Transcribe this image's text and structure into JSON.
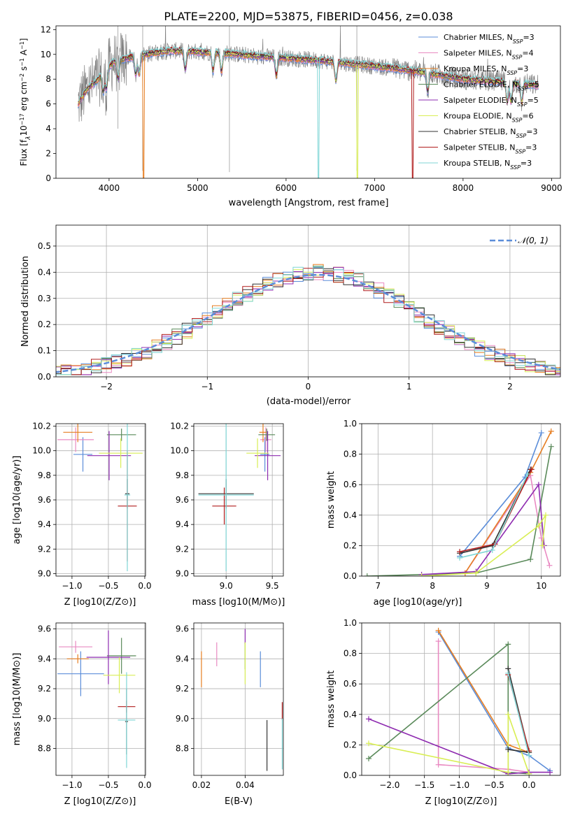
{
  "title": "PLATE=2200, MJD=53875, FIBERID=0456, z=0.038",
  "colors": {
    "Chabrier MILES": "#5b8dd9",
    "Salpeter MILES": "#e98ac2",
    "Kroupa MILES": "#e67e22",
    "Chabrier ELODIE": "#5a8a5a",
    "Salpeter ELODIE": "#8e2bb0",
    "Kroupa ELODIE": "#d9ee55",
    "Chabrier STELIB": "#333333",
    "Salpeter STELIB": "#b01c1c",
    "Kroupa STELIB": "#7fd6d6",
    "data": "#808080",
    "normal": "#5b8dd9"
  },
  "chart_data": [
    {
      "type": "line",
      "id": "spectrum",
      "xlabel": "wavelength [Angstrom, rest frame]",
      "ylabel": "Flux [f_λ 10^-17 erg cm^-2 s^-1 A^-1]",
      "xlim": [
        3400,
        9100
      ],
      "ylim": [
        0,
        12.3
      ],
      "xticks": [
        4000,
        5000,
        6000,
        7000,
        8000,
        9000
      ],
      "yticks": [
        0,
        2,
        4,
        6,
        8,
        10,
        12
      ],
      "legend": "top-right",
      "legend_entries": [
        {
          "label": "Chabrier MILES, N",
          "sub": "SSP",
          "n": "=3"
        },
        {
          "label": "Salpeter MILES, N",
          "sub": "SSP",
          "n": "=4"
        },
        {
          "label": "Kroupa MILES, N",
          "sub": "SSP",
          "n": "=3"
        },
        {
          "label": "Chabrier ELODIE, N",
          "sub": "SSP",
          "n": "=5"
        },
        {
          "label": "Salpeter ELODIE, N",
          "sub": "SSP",
          "n": "=5"
        },
        {
          "label": "Kroupa ELODIE, N",
          "sub": "SSP",
          "n": "=6"
        },
        {
          "label": "Chabrier STELIB, N",
          "sub": "SSP",
          "n": "=3"
        },
        {
          "label": "Salpeter STELIB, N",
          "sub": "SSP",
          "n": "=3"
        },
        {
          "label": "Kroupa STELIB, N",
          "sub": "SSP",
          "n": "=3"
        }
      ],
      "data_series": {
        "x_start": 3650,
        "x_end": 8850,
        "continuum_points": [
          [
            3650,
            6.0
          ],
          [
            3750,
            7.2
          ],
          [
            3850,
            7.8
          ],
          [
            3950,
            8.6
          ],
          [
            4050,
            9.4
          ],
          [
            4200,
            9.7
          ],
          [
            4400,
            10.0
          ],
          [
            4700,
            10.3
          ],
          [
            5000,
            10.2
          ],
          [
            5300,
            10.1
          ],
          [
            5600,
            9.9
          ],
          [
            6000,
            9.7
          ],
          [
            6400,
            9.5
          ],
          [
            6800,
            9.2
          ],
          [
            7200,
            8.9
          ],
          [
            7600,
            8.5
          ],
          [
            8000,
            8.0
          ],
          [
            8400,
            7.8
          ],
          [
            8850,
            7.5
          ]
        ],
        "model_cutoffs": [
          {
            "series": "Kroupa MILES",
            "x": 4380
          },
          {
            "series": "Kroupa STELIB",
            "x": 6360
          },
          {
            "series": "Kroupa ELODIE",
            "x": 6800
          },
          {
            "series": "Salpeter STELIB",
            "x": 7420
          }
        ]
      }
    },
    {
      "type": "histogram",
      "id": "residuals",
      "xlabel": "(data-model)/error",
      "ylabel": "Normed distribution",
      "xlim": [
        -2.5,
        2.5
      ],
      "ylim": [
        0,
        0.58
      ],
      "xticks": [
        -2,
        -1,
        0,
        1,
        2
      ],
      "yticks": [
        0.0,
        0.1,
        0.2,
        0.3,
        0.4,
        0.5
      ],
      "legend": "top-right",
      "legend_label": "𝒩(0, 1)",
      "bin_width": 0.1,
      "sigma": 1.05,
      "mean": 0.1
    },
    {
      "type": "errorbar",
      "id": "age-vs-Z",
      "xlabel": "Z [log10(Z/Z⊙)]",
      "ylabel": "age  [log10(age/yr)]",
      "xlim": [
        -1.22,
        0.01
      ],
      "ylim": [
        8.98,
        10.22
      ],
      "xticks": [
        -1.0,
        -0.5,
        0.0
      ],
      "yticks": [
        9.0,
        9.2,
        9.4,
        9.6,
        9.8,
        10.0,
        10.2
      ],
      "points": [
        {
          "series": "Chabrier MILES",
          "x": -0.85,
          "xerr": 0.13,
          "y": 9.97,
          "yerr": 0.14
        },
        {
          "series": "Salpeter MILES",
          "x": -0.95,
          "xerr": 0.25,
          "y": 10.09,
          "yerr": 0.1
        },
        {
          "series": "Kroupa MILES",
          "x": -0.92,
          "xerr": 0.2,
          "y": 10.15,
          "yerr": 0.08
        },
        {
          "series": "Chabrier ELODIE",
          "x": -0.32,
          "xerr": 0.2,
          "y": 10.13,
          "yerr": 0.05
        },
        {
          "series": "Salpeter ELODIE",
          "x": -0.49,
          "xerr": 0.3,
          "y": 9.96,
          "yerr": 0.2
        },
        {
          "series": "Kroupa ELODIE",
          "x": -0.33,
          "xerr": 0.3,
          "y": 9.98,
          "yerr": 0.12
        },
        {
          "series": "Chabrier STELIB",
          "x": -0.24,
          "xerr": 0.03,
          "y": 9.65,
          "yerr": 0.12
        },
        {
          "series": "Salpeter STELIB",
          "x": -0.24,
          "xerr": 0.13,
          "y": 9.55,
          "yerr": 0.45
        },
        {
          "series": "Kroupa STELIB",
          "x": -0.24,
          "xerr": 0.04,
          "y": 9.64,
          "yerr": 0.62
        }
      ]
    },
    {
      "type": "errorbar",
      "id": "age-vs-mass",
      "xlabel": "mass [log10(M/M⊙)]",
      "ylabel": "",
      "xlim": [
        8.65,
        9.62
      ],
      "ylim": [
        8.98,
        10.22
      ],
      "xticks": [
        9.0,
        9.5
      ],
      "yticks": [
        9.0,
        9.2,
        9.4,
        9.6,
        9.8,
        10.0,
        10.2
      ],
      "points": [
        {
          "series": "Chabrier MILES",
          "x": 9.42,
          "xerr": 0.05,
          "y": 9.97,
          "yerr": 0.14
        },
        {
          "series": "Salpeter MILES",
          "x": 9.43,
          "xerr": 0.06,
          "y": 10.09,
          "yerr": 0.1
        },
        {
          "series": "Kroupa MILES",
          "x": 9.4,
          "xerr": 0.04,
          "y": 10.15,
          "yerr": 0.08
        },
        {
          "series": "Chabrier ELODIE",
          "x": 9.44,
          "xerr": 0.09,
          "y": 10.13,
          "yerr": 0.05
        },
        {
          "series": "Salpeter ELODIE",
          "x": 9.45,
          "xerr": 0.14,
          "y": 9.96,
          "yerr": 0.2
        },
        {
          "series": "Kroupa ELODIE",
          "x": 9.34,
          "xerr": 0.12,
          "y": 9.98,
          "yerr": 0.12
        },
        {
          "series": "Chabrier STELIB",
          "x": 9.0,
          "xerr": 0.3,
          "y": 9.65,
          "yerr": 0.12
        },
        {
          "series": "Salpeter STELIB",
          "x": 8.98,
          "xerr": 0.13,
          "y": 9.55,
          "yerr": 0.15
        },
        {
          "series": "Kroupa STELIB",
          "x": 9.0,
          "xerr": 0.3,
          "y": 9.64,
          "yerr": 0.62
        }
      ]
    },
    {
      "type": "line",
      "id": "massweight-vs-age",
      "xlabel": "age  [log10(age/yr)]",
      "ylabel": "mass weight",
      "xlim": [
        6.7,
        10.35
      ],
      "ylim": [
        0,
        1
      ],
      "xticks": [
        7,
        8,
        9,
        10
      ],
      "yticks": [
        0.0,
        0.2,
        0.4,
        0.6,
        0.8,
        1.0
      ],
      "series": [
        {
          "name": "Chabrier MILES",
          "points": [
            [
              8.5,
              0.13
            ],
            [
              9.7,
              0.65
            ],
            [
              10.0,
              0.94
            ]
          ]
        },
        {
          "name": "Salpeter MILES",
          "points": [
            [
              8.6,
              0.02
            ],
            [
              9.8,
              0.66
            ],
            [
              10.0,
              0.25
            ],
            [
              10.15,
              0.07
            ]
          ]
        },
        {
          "name": "Kroupa MILES",
          "points": [
            [
              8.6,
              0.02
            ],
            [
              9.8,
              0.68
            ],
            [
              10.18,
              0.95
            ]
          ]
        },
        {
          "name": "Chabrier ELODIE",
          "points": [
            [
              6.8,
              0.0
            ],
            [
              8.8,
              0.02
            ],
            [
              9.8,
              0.11
            ],
            [
              10.18,
              0.85
            ]
          ]
        },
        {
          "name": "Salpeter ELODIE",
          "points": [
            [
              7.8,
              0.01
            ],
            [
              8.8,
              0.03
            ],
            [
              9.95,
              0.6
            ],
            [
              10.05,
              0.2
            ]
          ]
        },
        {
          "name": "Kroupa ELODIE",
          "points": [
            [
              7.8,
              0.0
            ],
            [
              8.8,
              0.02
            ],
            [
              9.95,
              0.33
            ],
            [
              10.08,
              0.4
            ],
            [
              10.02,
              0.2
            ]
          ]
        },
        {
          "name": "Chabrier STELIB",
          "points": [
            [
              8.5,
              0.15
            ],
            [
              9.1,
              0.2
            ],
            [
              9.8,
              0.7
            ]
          ]
        },
        {
          "name": "Salpeter STELIB",
          "points": [
            [
              8.5,
              0.16
            ],
            [
              9.15,
              0.21
            ],
            [
              9.82,
              0.7
            ]
          ]
        },
        {
          "name": "Kroupa STELIB",
          "points": [
            [
              8.5,
              0.12
            ],
            [
              9.1,
              0.17
            ],
            [
              9.75,
              0.67
            ]
          ]
        }
      ]
    },
    {
      "type": "errorbar",
      "id": "mass-vs-Z",
      "xlabel": "Z [log10(Z/Z⊙)]",
      "ylabel": "mass [log10(M/M⊙)]",
      "xlim": [
        -1.22,
        0.01
      ],
      "ylim": [
        8.62,
        9.64
      ],
      "xticks": [
        -1.0,
        -0.5,
        0.0
      ],
      "yticks": [
        8.8,
        9.0,
        9.2,
        9.4,
        9.6
      ],
      "points": [
        {
          "series": "Chabrier MILES",
          "x": -0.88,
          "xerr": 0.32,
          "y": 9.3,
          "yerr": 0.15
        },
        {
          "series": "Salpeter MILES",
          "x": -0.95,
          "xerr": 0.23,
          "y": 9.48,
          "yerr": 0.04
        },
        {
          "series": "Kroupa MILES",
          "x": -0.92,
          "xerr": 0.15,
          "y": 9.4,
          "yerr": 0.03
        },
        {
          "series": "Chabrier ELODIE",
          "x": -0.32,
          "xerr": 0.2,
          "y": 9.42,
          "yerr": 0.12
        },
        {
          "series": "Salpeter ELODIE",
          "x": -0.5,
          "xerr": 0.3,
          "y": 9.41,
          "yerr": 0.18
        },
        {
          "series": "Kroupa ELODIE",
          "x": -0.35,
          "xerr": 0.22,
          "y": 9.29,
          "yerr": 0.12
        },
        {
          "series": "Chabrier STELIB",
          "x": -0.25,
          "xerr": 0.02,
          "y": 8.98,
          "yerr": 0.22
        },
        {
          "series": "Salpeter STELIB",
          "x": -0.25,
          "xerr": 0.12,
          "y": 9.08,
          "yerr": 0.04
        },
        {
          "series": "Kroupa STELIB",
          "x": -0.25,
          "xerr": 0.12,
          "y": 8.99,
          "yerr": 0.32
        }
      ]
    },
    {
      "type": "errorbar",
      "id": "mass-vs-EBV",
      "xlabel": "E(B-V)",
      "ylabel": "",
      "xlim": [
        0.0165,
        0.0575
      ],
      "ylim": [
        8.62,
        9.64
      ],
      "xticks": [
        0.02,
        0.04
      ],
      "yticks": [
        8.8,
        9.0,
        9.2,
        9.4,
        9.6
      ],
      "points": [
        {
          "series": "Chabrier MILES",
          "x": 0.047,
          "y": 9.33,
          "yerr": 0.12
        },
        {
          "series": "Salpeter MILES",
          "x": 0.027,
          "y": 9.43,
          "yerr": 0.08
        },
        {
          "series": "Kroupa MILES",
          "x": 0.02,
          "y": 9.33,
          "yerr": 0.12
        },
        {
          "series": "Chabrier ELODIE",
          "x": 0.04,
          "y": 9.42,
          "yerr": 0.09
        },
        {
          "series": "Salpeter ELODIE",
          "x": 0.04,
          "y": 9.55,
          "yerr": 0.05
        },
        {
          "series": "Kroupa ELODIE",
          "x": 0.04,
          "y": 9.37,
          "yerr": 0.14
        },
        {
          "series": "Chabrier STELIB",
          "x": 0.05,
          "y": 8.82,
          "yerr": 0.17
        },
        {
          "series": "Salpeter STELIB",
          "x": 0.057,
          "y": 9.05,
          "yerr": 0.06
        },
        {
          "series": "Kroupa STELIB",
          "x": 0.057,
          "y": 8.83,
          "yerr": 0.17
        }
      ]
    },
    {
      "type": "line",
      "id": "massweight-vs-Z",
      "xlabel": "Z [log10(Z/Z⊙)]",
      "ylabel": "mass weight",
      "xlim": [
        -2.4,
        0.45
      ],
      "ylim": [
        0,
        1
      ],
      "xticks": [
        -2.0,
        -1.5,
        -1.0,
        -0.5,
        0.0
      ],
      "yticks": [
        0.0,
        0.2,
        0.4,
        0.6,
        0.8,
        1.0
      ],
      "series": [
        {
          "name": "Chabrier MILES",
          "points": [
            [
              -1.3,
              0.94
            ],
            [
              -0.3,
              0.18
            ],
            [
              0.0,
              0.13
            ],
            [
              0.3,
              0.03
            ]
          ]
        },
        {
          "name": "Salpeter MILES",
          "points": [
            [
              -1.3,
              0.88
            ],
            [
              -1.3,
              0.07
            ],
            [
              -0.3,
              0.04
            ],
            [
              0.0,
              0.02
            ]
          ]
        },
        {
          "name": "Kroupa MILES",
          "points": [
            [
              -1.3,
              0.95
            ],
            [
              -0.3,
              0.2
            ],
            [
              0.0,
              0.15
            ]
          ]
        },
        {
          "name": "Chabrier ELODIE",
          "points": [
            [
              -2.3,
              0.11
            ],
            [
              -0.3,
              0.86
            ],
            [
              -0.3,
              0.02
            ],
            [
              0.0,
              0.01
            ]
          ]
        },
        {
          "name": "Salpeter ELODIE",
          "points": [
            [
              -2.3,
              0.37
            ],
            [
              -0.3,
              0.01
            ],
            [
              0.0,
              0.02
            ],
            [
              0.3,
              0.02
            ]
          ]
        },
        {
          "name": "Kroupa ELODIE",
          "points": [
            [
              -2.3,
              0.21
            ],
            [
              -0.3,
              0.02
            ],
            [
              -0.3,
              0.4
            ],
            [
              0.0,
              0.01
            ]
          ]
        },
        {
          "name": "Chabrier STELIB",
          "points": [
            [
              -0.3,
              0.7
            ],
            [
              0.0,
              0.15
            ],
            [
              -0.3,
              0.17
            ]
          ]
        },
        {
          "name": "Salpeter STELIB",
          "points": [
            [
              -0.3,
              0.66
            ],
            [
              0.0,
              0.16
            ]
          ]
        },
        {
          "name": "Kroupa STELIB",
          "points": [
            [
              -0.3,
              0.67
            ],
            [
              0.0,
              0.13
            ]
          ]
        }
      ]
    }
  ]
}
